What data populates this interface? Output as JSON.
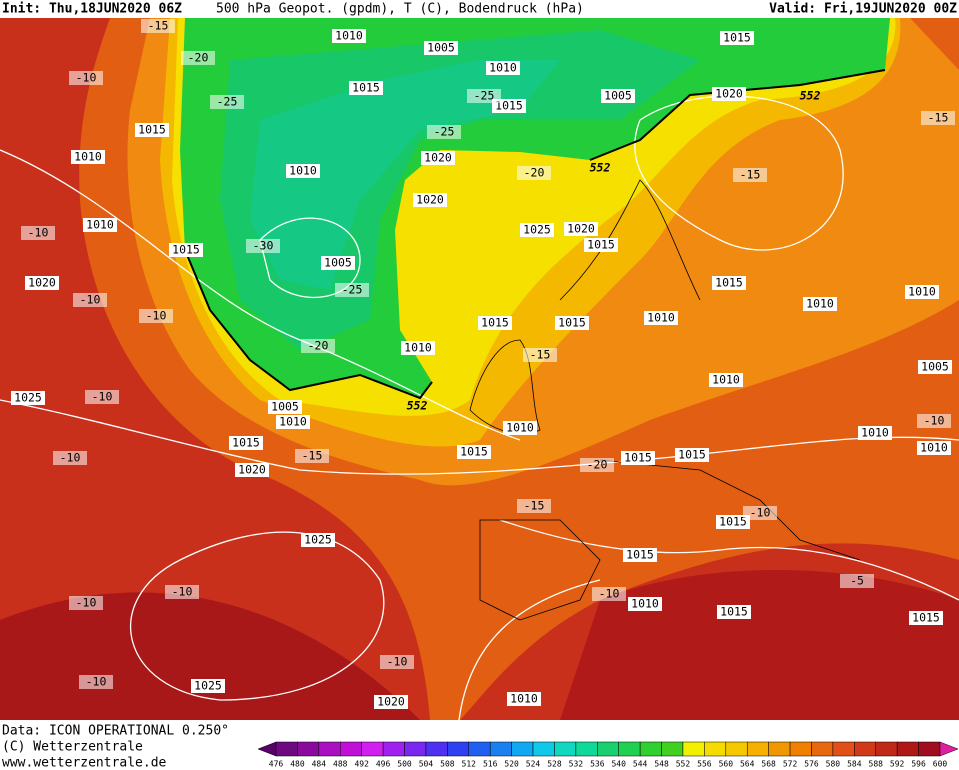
{
  "header": {
    "init": "Init: Thu,18JUN2020 06Z",
    "title": "500 hPa Geopot. (gpdm), T (C), Bodendruck (hPa)",
    "valid": "Valid: Fri,19JUN2020 00Z"
  },
  "footer": {
    "data": "Data: ICON OPERATIONAL 0.250°",
    "copyright": "(C) Wetterzentrale",
    "url": "www.wetterzentrale.de"
  },
  "colorbar": {
    "labels": [
      476,
      480,
      484,
      488,
      492,
      496,
      500,
      504,
      508,
      512,
      516,
      520,
      524,
      528,
      532,
      536,
      540,
      544,
      548,
      552,
      556,
      560,
      564,
      568,
      572,
      576,
      580,
      584,
      588,
      592,
      596,
      600
    ],
    "colors": [
      "#5a006a",
      "#6e0a80",
      "#8a0a9e",
      "#a810c0",
      "#c010d8",
      "#d020f0",
      "#a020f0",
      "#7a28f0",
      "#5030f0",
      "#2f40f0",
      "#2060f0",
      "#1a80f0",
      "#10a8f0",
      "#10c8e8",
      "#10d8c0",
      "#10d898",
      "#18d070",
      "#20d050",
      "#30d030",
      "#40d020",
      "#f0f000",
      "#f5dc00",
      "#f5c800",
      "#f5b000",
      "#f09800",
      "#f08000",
      "#e86810",
      "#e05018",
      "#d03a18",
      "#c02818",
      "#b01818",
      "#a00c20",
      "#e020a0"
    ]
  },
  "map": {
    "labels": [
      "1010",
      "1005",
      "1015",
      "1010",
      "1015",
      "1005",
      "1015",
      "1020",
      "1015",
      "1010",
      "1020",
      "1010",
      "1020",
      "1025",
      "1020",
      "1015",
      "1010",
      "1015",
      "1005",
      "1020",
      "1015",
      "1010",
      "1010",
      "1015",
      "1015",
      "1010",
      "1010",
      "1010",
      "1005",
      "1025",
      "1005",
      "1010",
      "1010",
      "1010",
      "1010",
      "1015",
      "1015",
      "1015",
      "1015",
      "1020",
      "1015",
      "1025",
      "1015",
      "1010",
      "1015",
      "1015",
      "1025",
      "1020",
      "1010",
      "-15",
      "-20",
      "-25",
      "-10",
      "-25",
      "-25",
      "-20",
      "-15",
      "-15",
      "-10",
      "-30",
      "-25",
      "-10",
      "-10",
      "-20",
      "-15",
      "-10",
      "-10",
      "-15",
      "-20",
      "-15",
      "-10",
      "-10",
      "-10",
      "-10",
      "-10",
      "-5",
      "-10",
      "-10",
      "552",
      "552",
      "552"
    ]
  }
}
